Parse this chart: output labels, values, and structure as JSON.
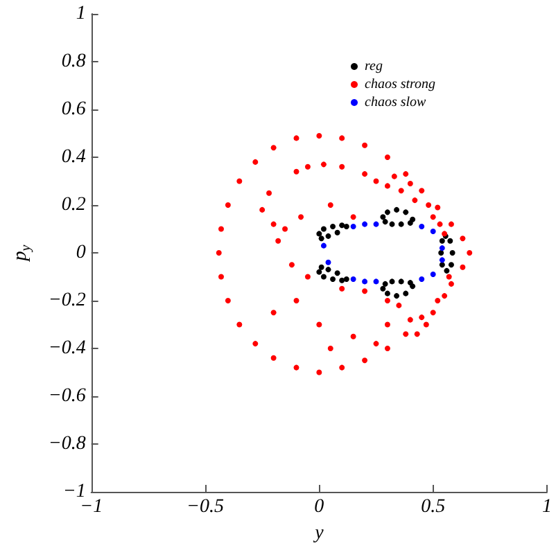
{
  "chart_data": {
    "type": "scatter",
    "xlabel": "y",
    "ylabel": "p$_{y}$",
    "xlim": [
      -1,
      1
    ],
    "ylim": [
      -1,
      1
    ],
    "xticks": [
      {
        "value": -1,
        "label": "−1"
      },
      {
        "value": -0.5,
        "label": "−0.5"
      },
      0,
      0.5,
      1
    ],
    "yticks": [
      {
        "value": -1,
        "label": "−1"
      },
      {
        "value": -0.8,
        "label": "−0.8"
      },
      {
        "value": -0.6,
        "label": "−0.6"
      },
      {
        "value": -0.4,
        "label": "−0.4"
      },
      {
        "value": -0.2,
        "label": "−0.2"
      },
      0,
      0.2,
      0.4,
      0.6,
      0.8,
      1
    ],
    "grid": false,
    "legend": "top right",
    "marker": "circle",
    "series": [
      {
        "name": "reg",
        "color": "#000000",
        "x": [
          0.0,
          0.01,
          0.04,
          0.08,
          0.12,
          0.1,
          0.06,
          0.02,
          0.0,
          0.01,
          0.04,
          0.08,
          0.12,
          0.1,
          0.06,
          0.02,
          0.28,
          0.3,
          0.34,
          0.38,
          0.41,
          0.4,
          0.36,
          0.32,
          0.29,
          0.28,
          0.3,
          0.34,
          0.38,
          0.41,
          0.4,
          0.36,
          0.32,
          0.29,
          0.555,
          0.575,
          0.585,
          0.58,
          0.56,
          0.54,
          0.535,
          0.54
        ],
        "values": [
          0.08,
          0.06,
          0.07,
          0.085,
          0.11,
          0.115,
          0.11,
          0.1,
          -0.08,
          -0.06,
          -0.07,
          -0.085,
          -0.11,
          -0.115,
          -0.11,
          -0.1,
          0.15,
          0.17,
          0.18,
          0.17,
          0.14,
          0.125,
          0.12,
          0.12,
          0.13,
          -0.15,
          -0.17,
          -0.18,
          -0.17,
          -0.14,
          -0.125,
          -0.12,
          -0.12,
          -0.13,
          0.07,
          0.05,
          0.0,
          -0.05,
          -0.075,
          -0.05,
          0.0,
          0.05
        ]
      },
      {
        "name": "chaos strong",
        "color": "#ff0000",
        "x": [
          -0.44,
          -0.43,
          -0.4,
          -0.35,
          -0.28,
          -0.2,
          -0.1,
          0.0,
          0.1,
          0.2,
          0.3,
          0.38,
          0.45,
          0.52,
          0.58,
          0.63,
          0.66,
          0.63,
          0.58,
          0.52,
          0.45,
          0.38,
          0.3,
          0.2,
          0.1,
          0.0,
          -0.1,
          -0.2,
          -0.28,
          -0.35,
          -0.4,
          -0.43,
          -0.1,
          -0.05,
          0.02,
          0.1,
          0.2,
          0.25,
          0.3,
          0.33,
          0.36,
          0.4,
          0.42,
          0.48,
          0.5,
          0.53,
          0.55,
          0.57,
          0.55,
          0.5,
          0.47,
          0.43,
          0.4,
          0.35,
          0.3,
          0.2,
          0.1,
          -0.05,
          -0.12,
          -0.18,
          -0.2,
          -0.25,
          -0.22,
          -0.15,
          -0.08,
          0.05,
          0.15,
          -0.1,
          -0.2,
          0.0,
          0.15,
          0.25,
          0.3,
          0.05
        ],
        "values": [
          0.0,
          0.1,
          0.2,
          0.3,
          0.38,
          0.44,
          0.48,
          0.49,
          0.48,
          0.45,
          0.4,
          0.33,
          0.26,
          0.19,
          0.12,
          0.06,
          0.0,
          -0.06,
          -0.13,
          -0.2,
          -0.27,
          -0.34,
          -0.4,
          -0.45,
          -0.48,
          -0.5,
          -0.48,
          -0.44,
          -0.38,
          -0.3,
          -0.2,
          -0.1,
          0.34,
          0.36,
          0.37,
          0.36,
          0.33,
          0.3,
          0.28,
          0.32,
          0.26,
          0.29,
          0.22,
          0.2,
          0.15,
          0.12,
          0.08,
          -0.1,
          -0.18,
          -0.25,
          -0.3,
          -0.34,
          -0.28,
          -0.22,
          -0.2,
          -0.16,
          -0.15,
          -0.1,
          -0.05,
          0.05,
          0.12,
          0.18,
          0.25,
          0.1,
          0.15,
          0.2,
          0.15,
          -0.2,
          -0.25,
          -0.3,
          -0.35,
          -0.38,
          -0.3,
          -0.4
        ]
      },
      {
        "name": "chaos slow",
        "color": "#0000ff",
        "x": [
          0.02,
          0.04,
          0.15,
          0.2,
          0.25,
          0.45,
          0.5,
          0.54,
          0.54,
          0.15,
          0.2,
          0.25,
          0.45,
          0.5
        ],
        "values": [
          0.03,
          -0.04,
          0.11,
          0.12,
          0.12,
          0.11,
          0.09,
          0.02,
          -0.03,
          -0.11,
          -0.12,
          -0.12,
          -0.11,
          -0.09
        ]
      }
    ]
  }
}
